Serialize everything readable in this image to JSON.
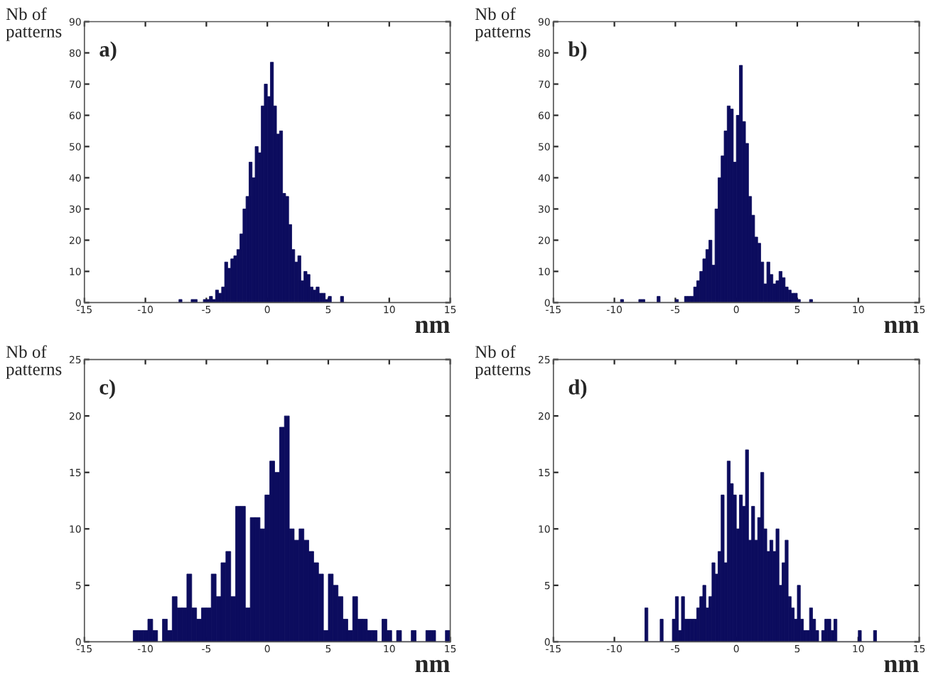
{
  "chart_data": [
    {
      "type": "histogram",
      "xlabel": "nm",
      "ylabel": "Nb of\npatterns",
      "annotations": [
        "a)"
      ],
      "color": "#0c0c5e",
      "xlim": [
        -15,
        15
      ],
      "ylim": [
        0,
        90
      ],
      "xticks": [
        -15,
        -10,
        -5,
        0,
        5,
        10,
        15
      ],
      "yticks": [
        0,
        10,
        20,
        30,
        40,
        50,
        60,
        70,
        80,
        90
      ],
      "grid": false,
      "bins": [
        -7.5,
        -7.25,
        -7.0,
        -6.75,
        -6.5,
        -6.25,
        -6.0,
        -5.75,
        -5.5,
        -5.25,
        -5.0,
        -4.75,
        -4.5,
        -4.25,
        -4.0,
        -3.75,
        -3.5,
        -3.25,
        -3.0,
        -2.75,
        -2.5,
        -2.25,
        -2.0,
        -1.75,
        -1.5,
        -1.25,
        -1.0,
        -0.75,
        -0.5,
        -0.25,
        0.0,
        0.25,
        0.5,
        0.75,
        1.0,
        1.25,
        1.5,
        1.75,
        2.0,
        2.25,
        2.5,
        2.75,
        3.0,
        3.25,
        3.5,
        3.75,
        4.0,
        4.25,
        4.5,
        4.75,
        5.0,
        5.25,
        5.5,
        5.75,
        6.0,
        6.25,
        6.5
      ],
      "values": [
        0,
        1,
        0,
        0,
        0,
        1,
        1,
        0,
        0,
        1,
        1,
        2,
        1,
        4,
        3,
        5,
        13,
        11,
        14,
        15,
        17,
        22,
        30,
        34,
        45,
        40,
        50,
        48,
        63,
        70,
        66,
        77,
        63,
        54,
        55,
        35,
        34,
        25,
        17,
        13,
        15,
        7,
        10,
        9,
        5,
        4,
        5,
        3,
        3,
        1,
        2,
        0,
        0,
        0,
        2,
        0
      ]
    },
    {
      "type": "histogram",
      "xlabel": "nm",
      "ylabel": "Nb of\npatterns",
      "annotations": [
        "b)"
      ],
      "color": "#0c0c5e",
      "xlim": [
        -15,
        15
      ],
      "ylim": [
        0,
        90
      ],
      "xticks": [
        -15,
        -10,
        -5,
        0,
        5,
        10,
        15
      ],
      "yticks": [
        0,
        10,
        20,
        30,
        40,
        50,
        60,
        70,
        80,
        90
      ],
      "grid": false,
      "bins": [
        -10.0,
        -9.75,
        -9.5,
        -9.25,
        -9.0,
        -8.75,
        -8.5,
        -8.25,
        -8.0,
        -7.75,
        -7.5,
        -7.25,
        -7.0,
        -6.75,
        -6.5,
        -6.25,
        -6.0,
        -5.75,
        -5.5,
        -5.25,
        -5.0,
        -4.75,
        -4.5,
        -4.25,
        -4.0,
        -3.75,
        -3.5,
        -3.25,
        -3.0,
        -2.75,
        -2.5,
        -2.25,
        -2.0,
        -1.75,
        -1.5,
        -1.25,
        -1.0,
        -0.75,
        -0.5,
        -0.25,
        0.0,
        0.25,
        0.5,
        0.75,
        1.0,
        1.25,
        1.5,
        1.75,
        2.0,
        2.25,
        2.5,
        2.75,
        3.0,
        3.25,
        3.5,
        3.75,
        4.0,
        4.25,
        4.5,
        4.75,
        5.0,
        5.25,
        5.5,
        5.75,
        6.0,
        6.25,
        6.5
      ],
      "values": [
        0,
        0,
        1,
        0,
        0,
        0,
        0,
        0,
        1,
        1,
        0,
        0,
        0,
        0,
        2,
        0,
        0,
        0,
        0,
        0,
        1,
        0,
        0,
        2,
        2,
        2,
        5,
        7,
        10,
        14,
        17,
        20,
        12,
        30,
        40,
        47,
        55,
        63,
        62,
        45,
        60,
        76,
        58,
        51,
        34,
        28,
        21,
        19,
        13,
        6,
        13,
        9,
        6,
        7,
        10,
        8,
        5,
        4,
        3,
        3,
        1,
        0,
        0,
        0,
        1,
        0
      ]
    },
    {
      "type": "histogram",
      "xlabel": "nm",
      "ylabel": "Nb of\npatterns",
      "annotations": [
        "c)"
      ],
      "color": "#0c0c5e",
      "xlim": [
        -15,
        15
      ],
      "ylim": [
        0,
        25
      ],
      "xticks": [
        -15,
        -10,
        -5,
        0,
        5,
        10,
        15
      ],
      "yticks": [
        0,
        5,
        10,
        15,
        20,
        25
      ],
      "grid": false,
      "bins": [
        -11.0,
        -10.6,
        -10.2,
        -9.8,
        -9.4,
        -9.0,
        -8.6,
        -8.2,
        -7.8,
        -7.4,
        -7.0,
        -6.6,
        -6.2,
        -5.8,
        -5.4,
        -5.0,
        -4.6,
        -4.2,
        -3.8,
        -3.4,
        -3.0,
        -2.6,
        -2.2,
        -1.8,
        -1.4,
        -1.0,
        -0.6,
        -0.2,
        0.2,
        0.6,
        1.0,
        1.4,
        1.8,
        2.2,
        2.6,
        3.0,
        3.4,
        3.8,
        4.2,
        4.6,
        5.0,
        5.4,
        5.8,
        6.2,
        6.6,
        7.0,
        7.4,
        7.8,
        8.2,
        8.6,
        9.0,
        9.4,
        9.8,
        10.2,
        10.6,
        11.0,
        11.4,
        11.8,
        12.2,
        12.6,
        13.0,
        13.4,
        13.8,
        14.2,
        14.6,
        15.0
      ],
      "values": [
        1,
        1,
        1,
        2,
        1,
        0,
        2,
        1,
        4,
        3,
        3,
        6,
        3,
        2,
        3,
        3,
        6,
        4,
        7,
        8,
        4,
        12,
        12,
        3,
        11,
        11,
        10,
        13,
        16,
        15,
        19,
        20,
        10,
        9,
        10,
        9,
        8,
        7,
        6,
        1,
        6,
        5,
        4,
        2,
        1,
        4,
        2,
        2,
        1,
        1,
        0,
        2,
        1,
        0,
        1,
        0,
        0,
        1,
        0,
        0,
        1,
        1,
        0,
        0,
        1
      ]
    },
    {
      "type": "histogram",
      "xlabel": "nm",
      "ylabel": "Nb of\npatterns",
      "annotations": [
        "d)"
      ],
      "color": "#0c0c5e",
      "xlim": [
        -15,
        15
      ],
      "ylim": [
        0,
        25
      ],
      "xticks": [
        -15,
        -10,
        -5,
        0,
        5,
        10,
        15
      ],
      "yticks": [
        0,
        5,
        10,
        15,
        20,
        25
      ],
      "grid": false,
      "bins": [
        -7.5,
        -7.25,
        -7.0,
        -6.75,
        -6.5,
        -6.25,
        -6.0,
        -5.75,
        -5.5,
        -5.25,
        -5.0,
        -4.75,
        -4.5,
        -4.25,
        -4.0,
        -3.75,
        -3.5,
        -3.25,
        -3.0,
        -2.75,
        -2.5,
        -2.25,
        -2.0,
        -1.75,
        -1.5,
        -1.25,
        -1.0,
        -0.75,
        -0.5,
        -0.25,
        0.0,
        0.25,
        0.5,
        0.75,
        1.0,
        1.25,
        1.5,
        1.75,
        2.0,
        2.25,
        2.5,
        2.75,
        3.0,
        3.25,
        3.5,
        3.75,
        4.0,
        4.25,
        4.5,
        4.75,
        5.0,
        5.25,
        5.5,
        5.75,
        6.0,
        6.25,
        6.5,
        6.75,
        7.0,
        7.25,
        7.5,
        7.75,
        8.0,
        8.25,
        8.5,
        8.75,
        9.0,
        9.25,
        9.5,
        9.75,
        10.0,
        10.25,
        10.5,
        10.75,
        11.0,
        11.25,
        11.5
      ],
      "values": [
        3,
        0,
        0,
        0,
        0,
        2,
        0,
        0,
        0,
        2,
        4,
        1,
        4,
        2,
        2,
        2,
        2,
        3,
        4,
        5,
        3,
        4,
        7,
        6,
        8,
        13,
        7,
        16,
        14,
        13,
        10,
        13,
        12,
        17,
        9,
        12,
        9,
        11,
        15,
        10,
        8,
        9,
        8,
        10,
        5,
        7,
        9,
        4,
        3,
        2,
        5,
        2,
        1,
        1,
        3,
        2,
        1,
        0,
        1,
        2,
        2,
        1,
        2,
        0,
        0,
        0,
        0,
        0,
        0,
        0,
        1,
        0,
        0,
        0,
        0,
        1
      ]
    }
  ]
}
